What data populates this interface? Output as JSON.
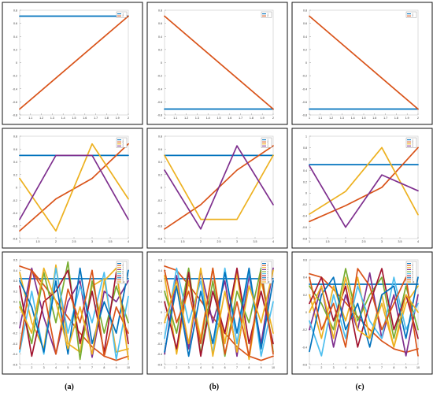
{
  "captions": [
    "(a)",
    "(b)",
    "(c)"
  ],
  "colors": [
    "#0072BD",
    "#D95319",
    "#EDB120",
    "#7E2F8E",
    "#77AC30",
    "#4DBEEE",
    "#A2142F",
    "#0072BD",
    "#D95319",
    "#EDB120"
  ],
  "chart_data": [
    {
      "type": "line",
      "panel": "a-top",
      "x": [
        1,
        2
      ],
      "xticks": [
        "1",
        "1.1",
        "1.2",
        "1.3",
        "1.4",
        "1.5",
        "1.6",
        "1.7",
        "1.8",
        "1.9",
        "2"
      ],
      "xlim": [
        1,
        2
      ],
      "ylim": [
        -0.8,
        0.8
      ],
      "yticks": [
        "0.8",
        "0.6",
        "0.4",
        "0.2",
        "0",
        "-0.2",
        "-0.4",
        "-0.6",
        "-0.8"
      ],
      "series": [
        {
          "name": "1",
          "values": [
            0.71,
            0.71
          ]
        },
        {
          "name": "2",
          "values": [
            -0.71,
            0.71
          ]
        }
      ]
    },
    {
      "type": "line",
      "panel": "b-top",
      "x": [
        1,
        2
      ],
      "xticks": [
        "1",
        "1.1",
        "1.2",
        "1.3",
        "1.4",
        "1.5",
        "1.6",
        "1.7",
        "1.8",
        "1.9",
        "2"
      ],
      "xlim": [
        1,
        2
      ],
      "ylim": [
        -0.8,
        0.8
      ],
      "yticks": [
        "0.8",
        "0.6",
        "0.4",
        "0.2",
        "0",
        "-0.2",
        "-0.4",
        "-0.6",
        "-0.8"
      ],
      "series": [
        {
          "name": "1",
          "values": [
            -0.71,
            -0.71
          ]
        },
        {
          "name": "2",
          "values": [
            0.71,
            -0.71
          ]
        }
      ]
    },
    {
      "type": "line",
      "panel": "c-top",
      "x": [
        1,
        2
      ],
      "xticks": [
        "1",
        "1.1",
        "1.2",
        "1.3",
        "1.4",
        "1.5",
        "1.6",
        "1.7",
        "1.8",
        "1.9",
        "2"
      ],
      "xlim": [
        1,
        2
      ],
      "ylim": [
        -0.8,
        0.8
      ],
      "yticks": [
        "0.8",
        "0.6",
        "0.4",
        "0.2",
        "0",
        "-0.2",
        "-0.4",
        "-0.6",
        "-0.8"
      ],
      "series": [
        {
          "name": "1",
          "values": [
            -0.71,
            -0.71
          ]
        },
        {
          "name": "2",
          "values": [
            0.71,
            -0.71
          ]
        }
      ]
    },
    {
      "type": "line",
      "panel": "a-mid",
      "x": [
        1,
        2,
        3,
        4
      ],
      "xticks": [
        "1",
        "1.5",
        "2",
        "2.5",
        "3",
        "3.5",
        "4"
      ],
      "xlim": [
        1,
        4
      ],
      "ylim": [
        -0.8,
        0.8
      ],
      "yticks": [
        "0.8",
        "0.6",
        "0.4",
        "0.2",
        "0",
        "-0.2",
        "-0.4",
        "-0.6",
        "-0.8"
      ],
      "series": [
        {
          "name": "1",
          "values": [
            0.5,
            0.5,
            0.5,
            0.5
          ]
        },
        {
          "name": "2",
          "values": [
            -0.68,
            -0.18,
            0.14,
            0.68
          ]
        },
        {
          "name": "3",
          "values": [
            0.14,
            -0.68,
            0.68,
            -0.18
          ]
        },
        {
          "name": "4",
          "values": [
            -0.5,
            0.5,
            0.5,
            -0.5
          ]
        }
      ]
    },
    {
      "type": "line",
      "panel": "b-mid",
      "x": [
        1,
        2,
        3,
        4
      ],
      "xticks": [
        "1",
        "1.5",
        "2",
        "2.5",
        "3",
        "3.5",
        "4"
      ],
      "xlim": [
        1,
        4
      ],
      "ylim": [
        -0.8,
        0.8
      ],
      "yticks": [
        "0.8",
        "0.6",
        "0.4",
        "0.2",
        "0",
        "-0.2",
        "-0.4",
        "-0.6",
        "-0.8"
      ],
      "series": [
        {
          "name": "1",
          "values": [
            0.5,
            0.5,
            0.5,
            0.5
          ]
        },
        {
          "name": "2",
          "values": [
            -0.65,
            -0.27,
            0.27,
            0.65
          ]
        },
        {
          "name": "3",
          "values": [
            0.5,
            -0.5,
            -0.5,
            0.5
          ]
        },
        {
          "name": "4",
          "values": [
            0.27,
            -0.65,
            0.65,
            -0.27
          ]
        }
      ]
    },
    {
      "type": "line",
      "panel": "c-mid",
      "x": [
        1,
        2,
        3,
        4
      ],
      "xticks": [
        "1",
        "1.5",
        "2",
        "2.5",
        "3",
        "3.5",
        "4"
      ],
      "xlim": [
        1,
        4
      ],
      "ylim": [
        -0.8,
        1
      ],
      "yticks": [
        "1",
        "0.8",
        "0.6",
        "0.4",
        "0.2",
        "0",
        "-0.2",
        "-0.4",
        "-0.6",
        "-0.8"
      ],
      "series": [
        {
          "name": "1",
          "values": [
            0.5,
            0.5,
            0.5,
            0.5
          ]
        },
        {
          "name": "2",
          "values": [
            -0.5,
            -0.22,
            0.1,
            0.8
          ]
        },
        {
          "name": "3",
          "values": [
            -0.37,
            0.03,
            0.8,
            -0.38
          ]
        },
        {
          "name": "4",
          "values": [
            0.48,
            -0.6,
            0.32,
            0.04
          ]
        }
      ]
    },
    {
      "type": "line",
      "panel": "a-bot",
      "x": [
        1,
        2,
        3,
        4,
        5,
        6,
        7,
        8,
        9,
        10
      ],
      "xticks": [
        "1",
        "2",
        "3",
        "4",
        "5",
        "6",
        "7",
        "8",
        "9",
        "10"
      ],
      "xlim": [
        1,
        10
      ],
      "ylim": [
        -0.5,
        0.5
      ],
      "yticks": [
        "0.5",
        "0.4",
        "0.3",
        "0.2",
        "0.1",
        "0",
        "-0.1",
        "-0.2",
        "-0.3",
        "-0.4",
        "-0.5"
      ],
      "series": [
        {
          "name": "1",
          "values": [
            0.32,
            0.32,
            0.32,
            0.32,
            0.32,
            0.32,
            0.32,
            0.32,
            0.32,
            0.32
          ]
        },
        {
          "name": "2",
          "values": [
            0.44,
            0.4,
            0.26,
            0.11,
            -0.05,
            -0.2,
            -0.33,
            -0.42,
            -0.46,
            -0.42
          ]
        },
        {
          "name": "3",
          "values": [
            0.38,
            -0.1,
            -0.35,
            0.45,
            -0.3,
            -0.38,
            0.25,
            0.32,
            -0.38,
            -0.35
          ]
        },
        {
          "name": "4",
          "values": [
            -0.15,
            0.42,
            -0.05,
            -0.4,
            0.1,
            0.3,
            -0.43,
            0.2,
            0.1,
            0.3
          ]
        },
        {
          "name": "5",
          "values": [
            0.1,
            -0.3,
            0.38,
            -0.1,
            0.48,
            -0.45,
            0.3,
            -0.2,
            0.25,
            -0.1
          ]
        },
        {
          "name": "6",
          "values": [
            -0.38,
            0.2,
            -0.4,
            0.42,
            -0.2,
            0.25,
            -0.1,
            0.38,
            -0.45,
            0.15
          ]
        },
        {
          "name": "7",
          "values": [
            0.25,
            -0.42,
            0.1,
            0.2,
            0.4,
            -0.3,
            0.2,
            -0.38,
            0.38,
            -0.3
          ]
        },
        {
          "name": "8",
          "values": [
            0.3,
            0.05,
            -0.38,
            0.3,
            -0.4,
            0.42,
            -0.3,
            0.1,
            -0.2,
            0.4
          ]
        },
        {
          "name": "9",
          "values": [
            -0.35,
            0.4,
            0.2,
            -0.4,
            0.22,
            -0.1,
            0.4,
            -0.42,
            0.05,
            -0.2
          ]
        },
        {
          "name": "10",
          "values": [
            0.05,
            -0.2,
            0.42,
            0.1,
            -0.35,
            0.05,
            -0.4,
            0.3,
            0.42,
            -0.45
          ]
        }
      ]
    },
    {
      "type": "line",
      "panel": "b-bot",
      "x": [
        1,
        2,
        3,
        4,
        5,
        6,
        7,
        8,
        9,
        10
      ],
      "xticks": [
        "1",
        "2",
        "3",
        "4",
        "5",
        "6",
        "7",
        "8",
        "9",
        "10"
      ],
      "xlim": [
        1,
        10
      ],
      "ylim": [
        -0.5,
        0.5
      ],
      "yticks": [
        "0.5",
        "0.4",
        "0.3",
        "0.2",
        "0.1",
        "0",
        "-0.1",
        "-0.2",
        "-0.3",
        "-0.4",
        "-0.5"
      ],
      "series": [
        {
          "name": "1",
          "values": [
            0.32,
            0.32,
            0.32,
            0.32,
            0.32,
            0.32,
            0.32,
            0.32,
            0.32,
            0.32
          ]
        },
        {
          "name": "2",
          "values": [
            0.44,
            0.4,
            0.26,
            0.11,
            -0.05,
            -0.2,
            -0.33,
            -0.42,
            -0.46,
            -0.42
          ]
        },
        {
          "name": "3",
          "values": [
            0.35,
            -0.4,
            0.3,
            -0.25,
            0.42,
            -0.3,
            0.38,
            -0.45,
            0.3,
            -0.2
          ]
        },
        {
          "name": "4",
          "values": [
            -0.4,
            0.35,
            -0.35,
            0.4,
            -0.1,
            0.3,
            -0.42,
            0.35,
            -0.3,
            0.42
          ]
        },
        {
          "name": "5",
          "values": [
            0.2,
            -0.2,
            0.42,
            -0.4,
            0.3,
            -0.42,
            0.2,
            -0.1,
            0.42,
            -0.38
          ]
        },
        {
          "name": "6",
          "values": [
            -0.25,
            0.42,
            -0.1,
            0.3,
            -0.4,
            0.42,
            -0.3,
            0.4,
            -0.42,
            0.1
          ]
        },
        {
          "name": "7",
          "values": [
            0.1,
            -0.35,
            0.38,
            -0.42,
            0.2,
            -0.2,
            0.42,
            -0.3,
            0.2,
            -0.3
          ]
        },
        {
          "name": "8",
          "values": [
            -0.38,
            0.25,
            -0.42,
            0.2,
            -0.3,
            0.38,
            -0.2,
            0.42,
            -0.35,
            0.3
          ]
        },
        {
          "name": "9",
          "values": [
            0.4,
            -0.1,
            0.2,
            -0.3,
            0.42,
            -0.4,
            0.1,
            -0.42,
            0.38,
            -0.4
          ]
        },
        {
          "name": "10",
          "values": [
            -0.1,
            0.3,
            -0.3,
            0.42,
            -0.42,
            0.2,
            -0.38,
            0.25,
            -0.1,
            0.4
          ]
        }
      ]
    },
    {
      "type": "line",
      "panel": "c-bot",
      "x": [
        1,
        2,
        3,
        4,
        5,
        6,
        7,
        8,
        9,
        10
      ],
      "xticks": [
        "1",
        "2",
        "3",
        "4",
        "5",
        "6",
        "7",
        "8",
        "9",
        "10"
      ],
      "xlim": [
        1,
        10
      ],
      "ylim": [
        -0.6,
        0.6
      ],
      "yticks": [
        "0.6",
        "0.4",
        "0.2",
        "0",
        "-0.2",
        "-0.4",
        "-0.6"
      ],
      "series": [
        {
          "name": "1",
          "values": [
            0.32,
            0.32,
            0.32,
            0.32,
            0.32,
            0.32,
            0.32,
            0.32,
            0.32,
            0.32
          ]
        },
        {
          "name": "2",
          "values": [
            0.44,
            0.4,
            0.26,
            0.11,
            -0.05,
            -0.2,
            -0.33,
            -0.42,
            -0.46,
            -0.42
          ]
        },
        {
          "name": "3",
          "values": [
            0.2,
            -0.3,
            0.3,
            -0.1,
            0.4,
            -0.3,
            0.2,
            -0.4,
            0.1,
            0.3
          ]
        },
        {
          "name": "4",
          "values": [
            -0.2,
            0.3,
            -0.4,
            0.2,
            -0.2,
            0.45,
            -0.3,
            0.2,
            -0.5,
            0.2
          ]
        },
        {
          "name": "5",
          "values": [
            0.3,
            0.1,
            -0.2,
            0.5,
            -0.1,
            0.2,
            0.4,
            -0.3,
            0.3,
            -0.2
          ]
        },
        {
          "name": "6",
          "values": [
            -0.1,
            -0.5,
            0.2,
            -0.3,
            0.3,
            -0.1,
            -0.3,
            0.4,
            -0.2,
            0.1
          ]
        },
        {
          "name": "7",
          "values": [
            0.1,
            0.4,
            -0.1,
            0.3,
            -0.4,
            0.1,
            0.5,
            -0.2,
            0.2,
            -0.3
          ]
        },
        {
          "name": "8",
          "values": [
            -0.45,
            0.2,
            0.4,
            -0.2,
            0.1,
            -0.4,
            0.2,
            0.3,
            -0.3,
            0.4
          ]
        },
        {
          "name": "9",
          "values": [
            0.4,
            -0.2,
            0.1,
            -0.4,
            0.5,
            0.3,
            -0.2,
            0.1,
            0.4,
            -0.5
          ]
        },
        {
          "name": "10",
          "values": [
            0.0,
            0.3,
            -0.3,
            0.4,
            -0.2,
            -0.3,
            0.1,
            -0.4,
            0.2,
            0.0
          ]
        }
      ]
    }
  ]
}
